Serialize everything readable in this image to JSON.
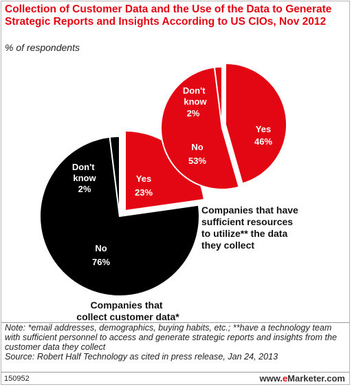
{
  "header": {
    "title": "Collection of Customer Data and the Use of the Data to Generate Strategic Reports and Insights According to US CIOs, Nov 2012",
    "subtitle": "% of respondents"
  },
  "colors": {
    "red": "#e30613",
    "black": "#000000",
    "background": "#ffffff"
  },
  "chart_data": [
    {
      "type": "pie",
      "caption": [
        "Companies that",
        "collect customer data*"
      ],
      "slices": [
        {
          "label": "Yes",
          "value": 23,
          "value_label": "23%",
          "color": "#e30613",
          "exploded": true
        },
        {
          "label": "No",
          "value": 76,
          "value_label": "76%",
          "color": "#000000",
          "exploded": false
        },
        {
          "label": "Don't know",
          "value": 2,
          "value_label": "2%",
          "color": "#000000",
          "exploded": false
        }
      ]
    },
    {
      "type": "pie",
      "caption": [
        "Companies that have",
        "sufficient resources",
        "to utilize** the data",
        "they collect"
      ],
      "slices": [
        {
          "label": "Yes",
          "value": 46,
          "value_label": "46%",
          "color": "#e30613",
          "exploded": true
        },
        {
          "label": "No",
          "value": 53,
          "value_label": "53%",
          "color": "#e30613",
          "exploded": false
        },
        {
          "label": "Don't know",
          "value": 2,
          "value_label": "2%",
          "color": "#e30613",
          "exploded": false
        }
      ]
    }
  ],
  "notes": {
    "note": "Note: *email addresses, demographics, buying habits, etc.; **have a technology team with sufficient personnel to access and generate strategic reports and insights from the customer data they collect",
    "source": "Source: Robert Half Technology as cited in press release, Jan 24, 2013"
  },
  "footer": {
    "chart_id": "150952",
    "brand_prefix": "www.",
    "brand_accent": "e",
    "brand_name": "Marketer.com"
  }
}
